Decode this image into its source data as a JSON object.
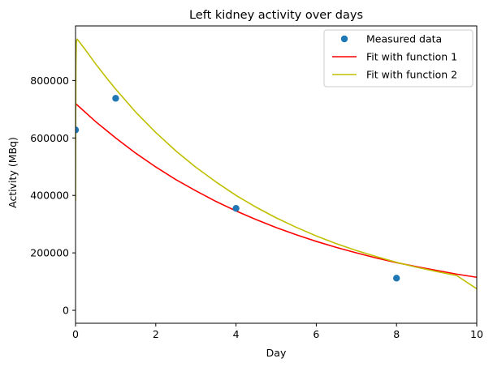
{
  "chart_data": {
    "type": "scatter",
    "title": "Left kidney activity over days",
    "xlabel": "Day",
    "ylabel": "Activity (MBq)",
    "xlim": [
      0,
      10
    ],
    "ylim": [
      -45000,
      990000
    ],
    "xticks": [
      0,
      2,
      4,
      6,
      8,
      10
    ],
    "yticks": [
      0,
      200000,
      400000,
      600000,
      800000
    ],
    "grid": false,
    "legend_position": "top-right",
    "series": [
      {
        "name": "Measured data",
        "kind": "scatter",
        "color": "#1f77b4",
        "x": [
          0,
          1,
          4,
          8
        ],
        "y": [
          628000,
          738000,
          355000,
          112000
        ]
      },
      {
        "name": "Fit with function 1",
        "kind": "line",
        "color": "#ff0000",
        "x": [
          0,
          0.5,
          1,
          1.5,
          2,
          2.5,
          3,
          3.5,
          4,
          4.5,
          5,
          5.5,
          6,
          6.5,
          7,
          7.5,
          8,
          8.5,
          9,
          9.5,
          10
        ],
        "y": [
          720000,
          657000,
          600000,
          547000,
          499000,
          455000,
          416000,
          379000,
          346000,
          316000,
          288000,
          263000,
          240000,
          219000,
          200000,
          182000,
          166000,
          152000,
          139000,
          126000,
          115000
        ]
      },
      {
        "name": "Fit with function 2",
        "kind": "line",
        "color": "#bfbf00",
        "x": [
          0,
          0.005,
          0.01,
          0.02,
          0.04,
          0.08,
          0.25,
          0.5,
          0.75,
          1,
          1.5,
          2,
          2.5,
          3,
          3.5,
          4,
          4.5,
          5,
          5.5,
          6,
          6.5,
          7,
          7.5,
          8,
          8.5,
          9,
          9.5,
          10
        ],
        "y": [
          380000,
          700000,
          860000,
          935000,
          944000,
          937000,
          906000,
          858000,
          813000,
          770000,
          690000,
          619000,
          555000,
          498000,
          447000,
          400000,
          359000,
          322000,
          289000,
          259000,
          232000,
          208000,
          187000,
          167000,
          150000,
          135000,
          121000,
          75000
        ]
      }
    ]
  }
}
